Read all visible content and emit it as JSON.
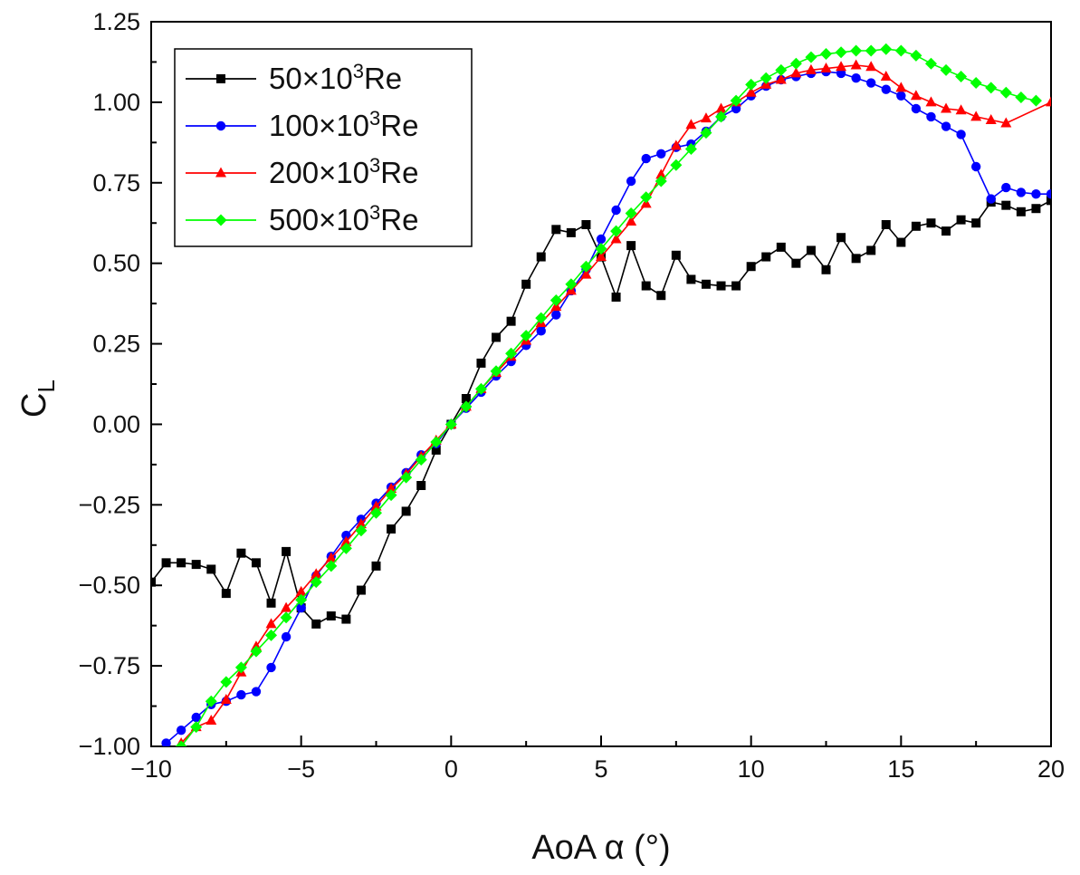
{
  "chart_data": {
    "type": "line",
    "title": "",
    "xlabel": "AoA α (°)",
    "ylabel": {
      "main": "C",
      "sub": "L"
    },
    "xlim": [
      -10,
      20
    ],
    "ylim": [
      -1.0,
      1.25
    ],
    "xticks": [
      -10,
      -5,
      0,
      5,
      10,
      15,
      20
    ],
    "xtick_labels": [
      "−10",
      "−5",
      "0",
      "5",
      "10",
      "15",
      "20"
    ],
    "yticks": [
      -1.0,
      -0.75,
      -0.5,
      -0.25,
      0.0,
      0.25,
      0.5,
      0.75,
      1.0,
      1.25
    ],
    "ytick_labels": [
      "−1.00",
      "−0.75",
      "−0.50",
      "−0.25",
      "0.00",
      "0.25",
      "0.50",
      "0.75",
      "1.00",
      "1.25"
    ],
    "grid": false,
    "legend_position": "top-left",
    "series": [
      {
        "name": "50×10³Re",
        "label_base": "50×10",
        "label_exp": "3",
        "label_suffix": "Re",
        "color": "#000000",
        "marker": "square",
        "x": [
          -10,
          -9.5,
          -9,
          -8.5,
          -8,
          -7.5,
          -7,
          -6.5,
          -6,
          -5.5,
          -5,
          -4.5,
          -4,
          -3.5,
          -3,
          -2.5,
          -2,
          -1.5,
          -1,
          -0.5,
          0,
          0.5,
          1,
          1.5,
          2,
          2.5,
          3,
          3.5,
          4,
          4.5,
          5,
          5.5,
          6,
          6.5,
          7,
          7.5,
          8,
          8.5,
          9,
          9.5,
          10,
          10.5,
          11,
          11.5,
          12,
          12.5,
          13,
          13.5,
          14,
          14.5,
          15,
          15.5,
          16,
          16.5,
          17,
          17.5,
          18,
          18.5,
          19,
          19.5,
          20
        ],
        "y": [
          -0.49,
          -0.43,
          -0.43,
          -0.435,
          -0.45,
          -0.525,
          -0.4,
          -0.43,
          -0.555,
          -0.395,
          -0.57,
          -0.62,
          -0.595,
          -0.605,
          -0.515,
          -0.44,
          -0.325,
          -0.27,
          -0.19,
          -0.08,
          0.0,
          0.08,
          0.19,
          0.27,
          0.32,
          0.435,
          0.52,
          0.605,
          0.595,
          0.62,
          0.52,
          0.395,
          0.555,
          0.43,
          0.4,
          0.525,
          0.45,
          0.435,
          0.43,
          0.43,
          0.49,
          0.52,
          0.55,
          0.5,
          0.54,
          0.48,
          0.58,
          0.515,
          0.54,
          0.62,
          0.565,
          0.615,
          0.625,
          0.6,
          0.635,
          0.625,
          0.69,
          0.68,
          0.66,
          0.67,
          0.695
        ]
      },
      {
        "name": "100×10³Re",
        "label_base": "100×10",
        "label_exp": "3",
        "label_suffix": "Re",
        "color": "#0000ff",
        "marker": "circle",
        "x": [
          -9.5,
          -9,
          -8.5,
          -8,
          -7.5,
          -7,
          -6.5,
          -6,
          -5.5,
          -5,
          -4.5,
          -4,
          -3.5,
          -3,
          -2.5,
          -2,
          -1.5,
          -1,
          -0.5,
          0,
          0.5,
          1,
          1.5,
          2,
          2.5,
          3,
          3.5,
          4,
          4.5,
          5,
          5.5,
          6,
          6.5,
          7,
          7.5,
          8,
          8.5,
          9,
          9.5,
          10,
          10.5,
          11,
          11.5,
          12,
          12.5,
          13,
          13.5,
          14,
          14.5,
          15,
          15.5,
          16,
          16.5,
          17,
          17.5,
          18,
          18.5,
          19,
          19.5,
          20
        ],
        "y": [
          -0.99,
          -0.95,
          -0.91,
          -0.87,
          -0.86,
          -0.84,
          -0.83,
          -0.755,
          -0.66,
          -0.57,
          -0.47,
          -0.41,
          -0.345,
          -0.295,
          -0.245,
          -0.195,
          -0.15,
          -0.095,
          -0.06,
          0.0,
          0.05,
          0.1,
          0.15,
          0.195,
          0.245,
          0.29,
          0.34,
          0.415,
          0.48,
          0.575,
          0.665,
          0.755,
          0.825,
          0.84,
          0.86,
          0.87,
          0.91,
          0.955,
          0.98,
          1.02,
          1.05,
          1.07,
          1.08,
          1.09,
          1.095,
          1.09,
          1.075,
          1.06,
          1.04,
          1.02,
          0.98,
          0.955,
          0.925,
          0.9,
          0.8,
          0.7,
          0.735,
          0.72,
          0.715,
          0.715
        ]
      },
      {
        "name": "200×10³Re",
        "label_base": "200×10",
        "label_exp": "3",
        "label_suffix": "Re",
        "color": "#ff0000",
        "marker": "triangle",
        "x": [
          -9,
          -8.5,
          -8,
          -7.5,
          -7,
          -6.5,
          -6,
          -5.5,
          -5,
          -4.5,
          -4,
          -3.5,
          -3,
          -2.5,
          -2,
          -1.5,
          -1,
          -0.5,
          0,
          0.5,
          1,
          1.5,
          2,
          2.5,
          3,
          3.5,
          4,
          4.5,
          5,
          5.5,
          6,
          6.5,
          7,
          7.5,
          8,
          8.5,
          9,
          9.5,
          10,
          10.5,
          11,
          11.5,
          12,
          12.5,
          13,
          13.5,
          14,
          14.5,
          15,
          15.5,
          16,
          16.5,
          17,
          17.5,
          18,
          18.5,
          20
        ],
        "y": [
          -0.99,
          -0.94,
          -0.92,
          -0.855,
          -0.77,
          -0.69,
          -0.62,
          -0.57,
          -0.52,
          -0.465,
          -0.415,
          -0.365,
          -0.31,
          -0.255,
          -0.2,
          -0.155,
          -0.1,
          -0.05,
          0.0,
          0.055,
          0.11,
          0.16,
          0.21,
          0.26,
          0.315,
          0.365,
          0.415,
          0.465,
          0.52,
          0.575,
          0.63,
          0.685,
          0.775,
          0.865,
          0.93,
          0.95,
          0.98,
          1.0,
          1.03,
          1.055,
          1.07,
          1.09,
          1.1,
          1.105,
          1.11,
          1.115,
          1.11,
          1.08,
          1.045,
          1.02,
          1.0,
          0.98,
          0.975,
          0.955,
          0.945,
          0.935,
          1.0
        ]
      },
      {
        "name": "500×10³Re",
        "label_base": "500×10",
        "label_exp": "3",
        "label_suffix": "Re",
        "color": "#00ff00",
        "marker": "diamond",
        "x": [
          -9,
          -8.5,
          -8,
          -7.5,
          -7,
          -6.5,
          -6,
          -5.5,
          -5,
          -4.5,
          -4,
          -3.5,
          -3,
          -2.5,
          -2,
          -1.5,
          -1,
          -0.5,
          0,
          0.5,
          1,
          1.5,
          2,
          2.5,
          3,
          3.5,
          4,
          4.5,
          5,
          5.5,
          6,
          6.5,
          7,
          7.5,
          8,
          8.5,
          9,
          9.5,
          10,
          10.5,
          11,
          11.5,
          12,
          12.5,
          13,
          13.5,
          14,
          14.5,
          15,
          15.5,
          16,
          16.5,
          17,
          17.5,
          18,
          18.5,
          19,
          19.5
        ],
        "y": [
          -1.0,
          -0.94,
          -0.86,
          -0.8,
          -0.755,
          -0.705,
          -0.655,
          -0.6,
          -0.545,
          -0.49,
          -0.44,
          -0.385,
          -0.33,
          -0.275,
          -0.22,
          -0.165,
          -0.11,
          -0.055,
          0.0,
          0.055,
          0.11,
          0.165,
          0.22,
          0.275,
          0.33,
          0.385,
          0.435,
          0.49,
          0.545,
          0.6,
          0.655,
          0.705,
          0.755,
          0.805,
          0.855,
          0.905,
          0.955,
          1.005,
          1.055,
          1.075,
          1.1,
          1.12,
          1.14,
          1.15,
          1.155,
          1.16,
          1.16,
          1.165,
          1.16,
          1.145,
          1.12,
          1.1,
          1.08,
          1.06,
          1.045,
          1.03,
          1.015,
          1.005
        ]
      }
    ]
  }
}
